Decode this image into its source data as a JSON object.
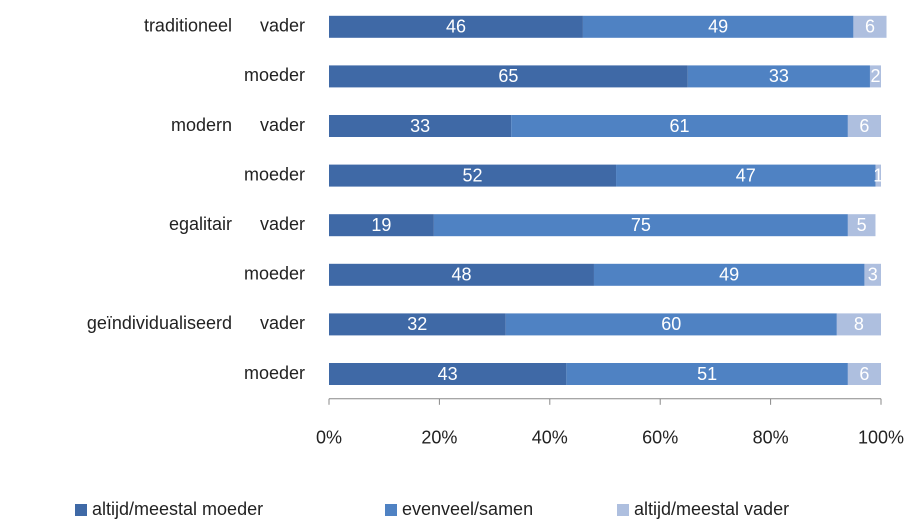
{
  "chart_data": {
    "type": "stacked-bar-horizontal",
    "groups": [
      "traditioneel",
      "modern",
      "egalitair",
      "geïndividualiseerd"
    ],
    "categories": [
      "vader",
      "moeder",
      "vader",
      "moeder",
      "vader",
      "moeder",
      "vader",
      "moeder"
    ],
    "series": [
      {
        "name": "altijd/meestal moeder",
        "color": "#3f69a6",
        "values": [
          46,
          65,
          33,
          52,
          19,
          48,
          32,
          43
        ]
      },
      {
        "name": "evenveel/samen",
        "color": "#4f82c3",
        "values": [
          49,
          33,
          61,
          47,
          75,
          49,
          60,
          51
        ]
      },
      {
        "name": "altijd/meestal vader",
        "color": "#aebfdf",
        "values": [
          6,
          2,
          6,
          1,
          5,
          3,
          8,
          6
        ]
      }
    ],
    "xlim": [
      0,
      100
    ],
    "xticks": [
      {
        "value": 0,
        "label": "0%"
      },
      {
        "value": 20,
        "label": "20%"
      },
      {
        "value": 40,
        "label": "40%"
      },
      {
        "value": 60,
        "label": "60%"
      },
      {
        "value": 80,
        "label": "80%"
      },
      {
        "value": 100,
        "label": "100%"
      }
    ],
    "legend": "bottom"
  }
}
